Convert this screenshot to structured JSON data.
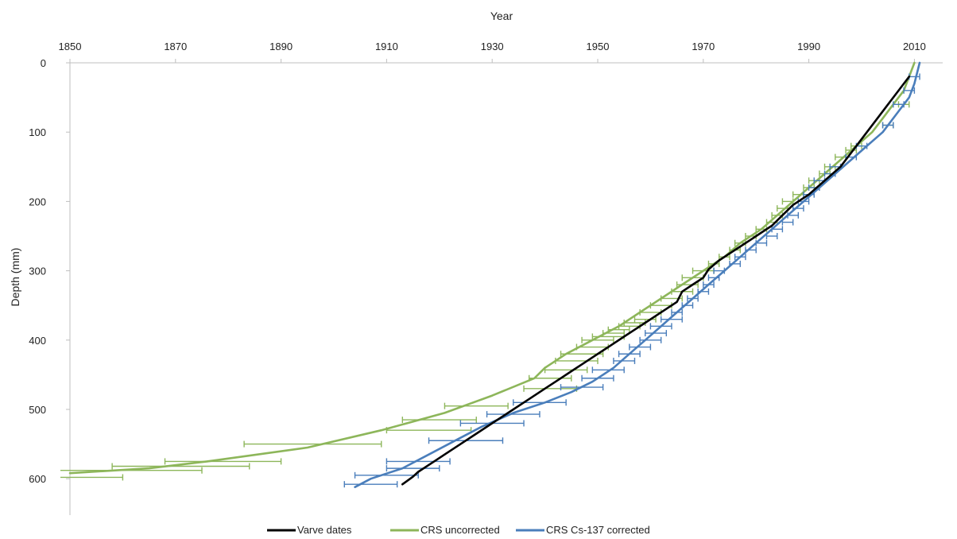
{
  "chart_data": {
    "type": "line",
    "xlabel": "Year",
    "ylabel": "Depth (mm)",
    "xlim": [
      1850,
      2025
    ],
    "ylim": [
      0,
      650
    ],
    "x_ticks": [
      1850,
      1870,
      1890,
      1910,
      1930,
      1950,
      1970,
      1990,
      2010
    ],
    "y_ticks": [
      0,
      100,
      200,
      300,
      400,
      500,
      600
    ],
    "x_axis_position": "top",
    "y_axis_inverted": true,
    "grid": false,
    "legend_position": "bottom",
    "series": [
      {
        "name": "Varve dates",
        "color": "#000000",
        "points": [
          [
            2009,
            20
          ],
          [
            2007,
            40
          ],
          [
            2005,
            60
          ],
          [
            2003,
            80
          ],
          [
            2000,
            110
          ],
          [
            1998,
            130
          ],
          [
            1996,
            150
          ],
          [
            1993,
            170
          ],
          [
            1990,
            190
          ],
          [
            1987,
            205
          ],
          [
            1985,
            220
          ],
          [
            1983,
            235
          ],
          [
            1981,
            245
          ],
          [
            1979,
            255
          ],
          [
            1977,
            265
          ],
          [
            1975,
            275
          ],
          [
            1973,
            285
          ],
          [
            1971,
            298
          ],
          [
            1970,
            310
          ],
          [
            1968,
            320
          ],
          [
            1966,
            330
          ],
          [
            1965,
            345
          ],
          [
            1963,
            355
          ],
          [
            1961,
            365
          ],
          [
            1959,
            375
          ],
          [
            1957,
            385
          ],
          [
            1955,
            395
          ],
          [
            1953,
            405
          ],
          [
            1951,
            415
          ],
          [
            1949,
            425
          ],
          [
            1947,
            435
          ],
          [
            1945,
            445
          ],
          [
            1943,
            455
          ],
          [
            1940,
            470
          ],
          [
            1937,
            485
          ],
          [
            1934,
            500
          ],
          [
            1930,
            520
          ],
          [
            1927,
            535
          ],
          [
            1924,
            550
          ],
          [
            1921,
            565
          ],
          [
            1919,
            575
          ],
          [
            1918,
            580
          ],
          [
            1916,
            590
          ],
          [
            1915,
            597
          ],
          [
            1913,
            608
          ]
        ]
      },
      {
        "name": "CRS uncorrected",
        "color": "#8db65a",
        "points": [
          [
            2010,
            0
          ],
          [
            2008,
            40
          ],
          [
            2006,
            60
          ],
          [
            2004,
            80
          ],
          [
            2002,
            100
          ],
          [
            1999,
            120
          ],
          [
            1996,
            140
          ],
          [
            1993,
            160
          ],
          [
            1990,
            180
          ],
          [
            1987,
            200
          ],
          [
            1984,
            220
          ],
          [
            1981,
            240
          ],
          [
            1977,
            260
          ],
          [
            1974,
            280
          ],
          [
            1970,
            300
          ],
          [
            1966,
            320
          ],
          [
            1962,
            340
          ],
          [
            1958,
            360
          ],
          [
            1954,
            380
          ],
          [
            1949,
            400
          ],
          [
            1944,
            420
          ],
          [
            1940,
            440
          ],
          [
            1938,
            455
          ],
          [
            1930,
            480
          ],
          [
            1921,
            505
          ],
          [
            1909,
            530
          ],
          [
            1895,
            555
          ],
          [
            1876,
            575
          ],
          [
            1865,
            585
          ],
          [
            1850,
            592
          ]
        ],
        "error_bars": [
          [
            2008,
            60,
            1
          ],
          [
            2005,
            90,
            1
          ],
          [
            1999,
            120,
            1
          ],
          [
            1998,
            126,
            1
          ],
          [
            1996,
            136,
            1
          ],
          [
            1994,
            150,
            1
          ],
          [
            1993,
            160,
            1
          ],
          [
            1991,
            170,
            1
          ],
          [
            1990,
            180,
            1
          ],
          [
            1988,
            190,
            1
          ],
          [
            1986,
            200,
            1
          ],
          [
            1985,
            210,
            1
          ],
          [
            1984,
            220,
            1
          ],
          [
            1983,
            230,
            1
          ],
          [
            1981,
            240,
            1
          ],
          [
            1979,
            250,
            1
          ],
          [
            1977,
            260,
            1
          ],
          [
            1976,
            270,
            1
          ],
          [
            1974,
            280,
            1
          ],
          [
            1972,
            290,
            1
          ],
          [
            1970,
            300,
            2
          ],
          [
            1968,
            310,
            2
          ],
          [
            1967,
            320,
            2
          ],
          [
            1966,
            330,
            2
          ],
          [
            1964,
            340,
            2
          ],
          [
            1962,
            350,
            2
          ],
          [
            1960,
            360,
            2
          ],
          [
            1959,
            370,
            2
          ],
          [
            1957,
            375,
            2
          ],
          [
            1956,
            380,
            2
          ],
          [
            1954,
            385,
            2
          ],
          [
            1953,
            390,
            2
          ],
          [
            1952,
            395,
            3
          ],
          [
            1950,
            400,
            3
          ],
          [
            1949,
            410,
            3
          ],
          [
            1947,
            420,
            4
          ],
          [
            1946,
            430,
            4
          ],
          [
            1944,
            443,
            4
          ],
          [
            1941,
            455,
            4
          ],
          [
            1941,
            470,
            5
          ],
          [
            1927,
            495,
            6
          ],
          [
            1920,
            515,
            7
          ],
          [
            1918,
            530,
            8
          ],
          [
            1896,
            550,
            13
          ],
          [
            1879,
            575,
            11
          ],
          [
            1871,
            582,
            13
          ],
          [
            1860,
            588,
            15
          ],
          [
            1850,
            598,
            10
          ]
        ]
      },
      {
        "name": "CRS Cs-137 corrected",
        "color": "#4a7ebb",
        "points": [
          [
            2011,
            0
          ],
          [
            2010,
            30
          ],
          [
            2009,
            50
          ],
          [
            2007,
            70
          ],
          [
            2004,
            100
          ],
          [
            2001,
            120
          ],
          [
            1998,
            140
          ],
          [
            1995,
            160
          ],
          [
            1992,
            180
          ],
          [
            1989,
            200
          ],
          [
            1986,
            220
          ],
          [
            1983,
            240
          ],
          [
            1980,
            260
          ],
          [
            1977,
            280
          ],
          [
            1974,
            300
          ],
          [
            1971,
            320
          ],
          [
            1968,
            340
          ],
          [
            1965,
            360
          ],
          [
            1962,
            380
          ],
          [
            1959,
            400
          ],
          [
            1956,
            420
          ],
          [
            1953,
            440
          ],
          [
            1949,
            460
          ],
          [
            1945,
            475
          ],
          [
            1940,
            490
          ],
          [
            1934,
            505
          ],
          [
            1928,
            525
          ],
          [
            1923,
            545
          ],
          [
            1918,
            565
          ],
          [
            1913,
            585
          ],
          [
            1907,
            600
          ],
          [
            1904,
            612
          ]
        ],
        "error_bars": [
          [
            2010,
            20,
            1
          ],
          [
            2009,
            40,
            1
          ],
          [
            2007,
            60,
            1
          ],
          [
            2005,
            90,
            1
          ],
          [
            2000,
            120,
            1
          ],
          [
            1998,
            136,
            1
          ],
          [
            1995,
            150,
            1
          ],
          [
            1994,
            160,
            1
          ],
          [
            1992,
            170,
            1
          ],
          [
            1991,
            180,
            1
          ],
          [
            1990,
            190,
            1
          ],
          [
            1989,
            200,
            1
          ],
          [
            1988,
            210,
            1
          ],
          [
            1987,
            220,
            1
          ],
          [
            1986,
            230,
            1
          ],
          [
            1984,
            240,
            1
          ],
          [
            1983,
            250,
            1
          ],
          [
            1981,
            260,
            1
          ],
          [
            1979,
            270,
            1
          ],
          [
            1977,
            280,
            1
          ],
          [
            1976,
            290,
            1
          ],
          [
            1973,
            300,
            1
          ],
          [
            1972,
            310,
            1
          ],
          [
            1971,
            320,
            1
          ],
          [
            1970,
            330,
            1
          ],
          [
            1968,
            340,
            1
          ],
          [
            1967,
            350,
            1
          ],
          [
            1965,
            360,
            1
          ],
          [
            1964,
            370,
            2
          ],
          [
            1962,
            380,
            2
          ],
          [
            1961,
            390,
            2
          ],
          [
            1960,
            400,
            2
          ],
          [
            1958,
            410,
            2
          ],
          [
            1956,
            420,
            2
          ],
          [
            1955,
            430,
            2
          ],
          [
            1952,
            443,
            3
          ],
          [
            1950,
            455,
            3
          ],
          [
            1947,
            468,
            4
          ],
          [
            1939,
            490,
            5
          ],
          [
            1934,
            507,
            5
          ],
          [
            1930,
            520,
            6
          ],
          [
            1925,
            545,
            7
          ],
          [
            1916,
            575,
            6
          ],
          [
            1915,
            585,
            5
          ],
          [
            1910,
            595,
            6
          ],
          [
            1907,
            608,
            5
          ]
        ]
      }
    ]
  }
}
